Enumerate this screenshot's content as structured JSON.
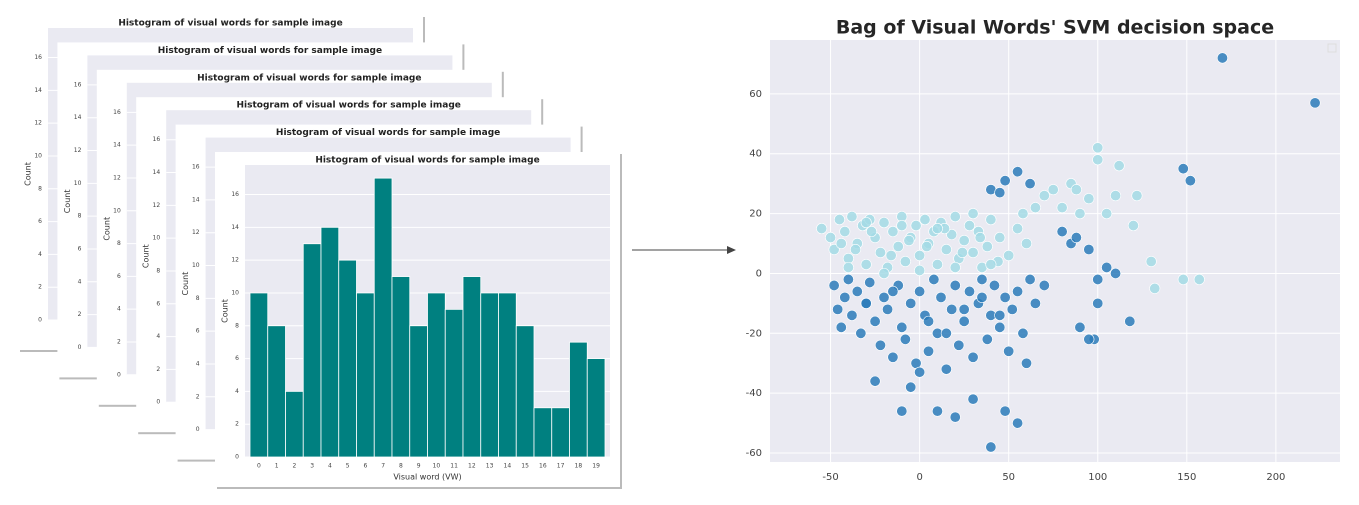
{
  "chart_data": [
    {
      "type": "bar",
      "title": "Histogram of visual words for sample image",
      "xlabel": "Visual word (VW)",
      "ylabel": "Count",
      "categories": [
        "0",
        "1",
        "2",
        "3",
        "4",
        "5",
        "6",
        "7",
        "8",
        "9",
        "10",
        "11",
        "12",
        "13",
        "14",
        "15",
        "16",
        "17",
        "18",
        "19"
      ],
      "values": [
        10,
        8,
        4,
        13,
        14,
        12,
        10,
        17,
        11,
        8,
        10,
        9,
        11,
        10,
        10,
        8,
        3,
        3,
        7,
        6
      ],
      "color": "#008080",
      "ylim": [
        0,
        17.8
      ],
      "yticks": [
        0,
        2,
        4,
        6,
        8,
        10,
        12,
        14,
        16
      ],
      "grid": true
    },
    {
      "type": "scatter",
      "title": "Bag of Visual Words' SVM decision space",
      "xlim": [
        -84,
        236
      ],
      "xticks": [
        -50,
        0,
        50,
        100,
        150,
        200
      ],
      "ylim": [
        -63,
        78
      ],
      "yticks": [
        -60,
        -40,
        -20,
        0,
        20,
        40,
        60
      ],
      "grid": true,
      "series": [
        {
          "color": "#a3dbe5",
          "x": [
            -55,
            -50,
            -48,
            -45,
            -42,
            -40,
            -38,
            -35,
            -32,
            -30,
            -28,
            -25,
            -22,
            -20,
            -18,
            -15,
            -12,
            -10,
            -8,
            -5,
            -2,
            0,
            3,
            5,
            8,
            10,
            12,
            15,
            18,
            20,
            22,
            25,
            28,
            30,
            33,
            35,
            38,
            40,
            45,
            50,
            55,
            58,
            60,
            65,
            70,
            75,
            80,
            85,
            88,
            90,
            95,
            100,
            100,
            105,
            110,
            112,
            120,
            122,
            130,
            132,
            148,
            157,
            -44,
            -36,
            -27,
            -16,
            -6,
            4,
            14,
            24,
            34,
            44,
            -40,
            -20,
            0,
            20,
            40,
            -30,
            -10,
            10,
            30
          ],
          "values": [
            15,
            12,
            8,
            18,
            14,
            5,
            19,
            10,
            16,
            3,
            18,
            12,
            7,
            17,
            2,
            14,
            9,
            19,
            4,
            12,
            16,
            6,
            18,
            10,
            14,
            3,
            17,
            8,
            13,
            19,
            5,
            11,
            16,
            7,
            14,
            2,
            9,
            18,
            12,
            6,
            15,
            20,
            10,
            22,
            26,
            28,
            22,
            30,
            28,
            20,
            25,
            38,
            42,
            20,
            26,
            36,
            16,
            26,
            4,
            -5,
            -2,
            -2,
            10,
            8,
            14,
            6,
            11,
            9,
            15,
            7,
            12,
            4,
            2,
            0,
            1,
            2,
            3,
            17,
            16,
            15,
            20
          ],
          "name_hidden": null
        },
        {
          "color": "#2b7bba",
          "x": [
            -48,
            -46,
            -44,
            -42,
            -40,
            -38,
            -35,
            -33,
            -30,
            -28,
            -25,
            -22,
            -20,
            -18,
            -15,
            -12,
            -10,
            -8,
            -5,
            -2,
            0,
            3,
            5,
            8,
            10,
            12,
            15,
            18,
            20,
            22,
            25,
            28,
            30,
            33,
            35,
            38,
            40,
            42,
            45,
            48,
            50,
            52,
            55,
            58,
            60,
            62,
            65,
            70,
            -25,
            -5,
            0,
            10,
            20,
            30,
            40,
            48,
            55,
            -10,
            170,
            222,
            148,
            152,
            118,
            98,
            95,
            90,
            100,
            100,
            105,
            110,
            95,
            85,
            88,
            80,
            55,
            62,
            40,
            45,
            48,
            -30,
            -15,
            5,
            15,
            25,
            35,
            45
          ],
          "values": [
            -4,
            -12,
            -18,
            -8,
            -2,
            -14,
            -6,
            -20,
            -10,
            -3,
            -16,
            -24,
            -8,
            -12,
            -28,
            -4,
            -18,
            -22,
            -10,
            -30,
            -6,
            -14,
            -26,
            -2,
            -20,
            -8,
            -32,
            -12,
            -4,
            -24,
            -16,
            -6,
            -28,
            -10,
            -2,
            -22,
            -14,
            -4,
            -18,
            -8,
            -26,
            -12,
            -6,
            -20,
            -30,
            -2,
            -10,
            -4,
            -36,
            -38,
            -33,
            -46,
            -48,
            -42,
            -58,
            -46,
            -50,
            -46,
            72,
            57,
            35,
            31,
            -16,
            -22,
            -22,
            -18,
            -10,
            -2,
            2,
            0,
            8,
            10,
            12,
            14,
            34,
            30,
            28,
            27,
            31,
            -10,
            -6,
            -16,
            -20,
            -12,
            -8,
            -14
          ],
          "name_hidden": null
        }
      ]
    }
  ]
}
